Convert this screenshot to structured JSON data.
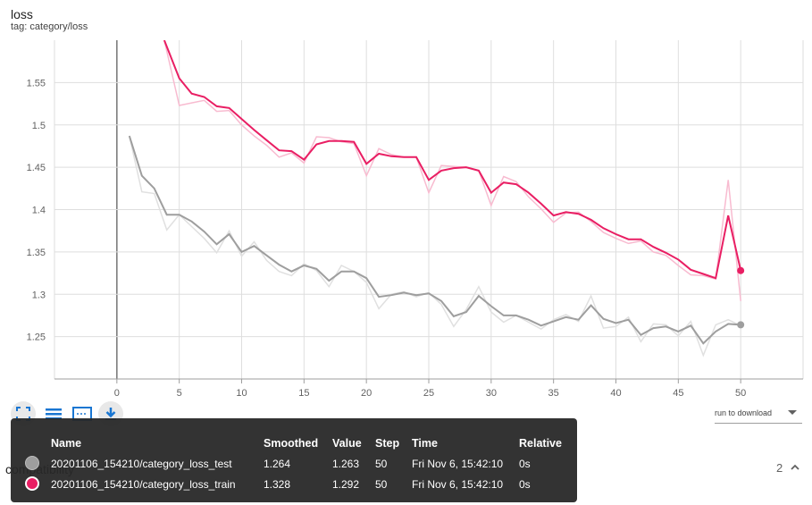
{
  "header": {
    "title": "loss",
    "tag": "tag: category/loss"
  },
  "colors": {
    "train": "#e91e63",
    "test": "#9e9e9e",
    "train_raw": "#f8bbd0",
    "test_raw": "#e0e0e0"
  },
  "toolbar": {
    "buttons": [
      {
        "name": "fit-domain-icon"
      },
      {
        "name": "data-selection-icon"
      },
      {
        "name": "toggle-log-icon"
      },
      {
        "name": "download-icon"
      }
    ]
  },
  "run_download": {
    "label": "run to download"
  },
  "section": {
    "label": "compatibility",
    "count": "2"
  },
  "tooltip": {
    "headers": [
      "Name",
      "Smoothed",
      "Value",
      "Step",
      "Time",
      "Relative"
    ],
    "rows": [
      {
        "name": "20201106_154210/category_loss_test",
        "smoothed": "1.264",
        "value": "1.263",
        "step": "50",
        "time": "Fri Nov 6, 15:42:10",
        "relative": "0s"
      },
      {
        "name": "20201106_154210/category_loss_train",
        "smoothed": "1.328",
        "value": "1.292",
        "step": "50",
        "time": "Fri Nov 6, 15:42:10",
        "relative": "0s"
      }
    ]
  },
  "chart_data": {
    "type": "line",
    "title": "loss",
    "xlabel": "",
    "ylabel": "",
    "xlim": [
      -5,
      55
    ],
    "ylim": [
      1.2,
      1.6
    ],
    "xticks": [
      0,
      5,
      10,
      15,
      20,
      25,
      30,
      35,
      40,
      45,
      50
    ],
    "yticks": [
      1.25,
      1.3,
      1.35,
      1.4,
      1.45,
      1.5,
      1.55
    ],
    "ytick_labels": [
      "1.25",
      "1.3",
      "1.35",
      "1.4",
      "1.45",
      "1.5",
      "1.55"
    ],
    "grid": true,
    "series": [
      {
        "name": "20201106_154210/category_loss_train",
        "x": [
          3.8,
          5,
          6,
          7,
          8,
          9,
          10,
          11,
          12,
          13,
          14,
          15,
          16,
          17,
          18,
          19,
          20,
          21,
          22,
          23,
          24,
          25,
          26,
          27,
          28,
          29,
          30,
          31,
          32,
          33,
          34,
          35,
          36,
          37,
          38,
          39,
          40,
          41,
          42,
          43,
          44,
          45,
          46,
          47,
          48,
          49,
          50
        ],
        "smoothed": [
          1.6,
          1.555,
          1.537,
          1.533,
          1.522,
          1.52,
          1.507,
          1.494,
          1.482,
          1.47,
          1.469,
          1.459,
          1.477,
          1.481,
          1.481,
          1.48,
          1.454,
          1.466,
          1.463,
          1.462,
          1.462,
          1.435,
          1.446,
          1.449,
          1.45,
          1.446,
          1.42,
          1.432,
          1.43,
          1.42,
          1.407,
          1.393,
          1.397,
          1.395,
          1.388,
          1.378,
          1.371,
          1.365,
          1.365,
          1.356,
          1.349,
          1.341,
          1.329,
          1.324,
          1.319,
          1.393,
          1.328
        ],
        "raw": [
          1.6,
          1.523,
          1.526,
          1.529,
          1.516,
          1.517,
          1.5,
          1.487,
          1.476,
          1.462,
          1.467,
          1.455,
          1.486,
          1.485,
          1.48,
          1.478,
          1.44,
          1.472,
          1.465,
          1.462,
          1.462,
          1.42,
          1.452,
          1.451,
          1.45,
          1.446,
          1.405,
          1.439,
          1.433,
          1.415,
          1.401,
          1.385,
          1.396,
          1.397,
          1.386,
          1.373,
          1.366,
          1.36,
          1.363,
          1.35,
          1.346,
          1.334,
          1.323,
          1.322,
          1.318,
          1.435,
          1.292
        ]
      },
      {
        "name": "20201106_154210/category_loss_test",
        "x": [
          1,
          2,
          3,
          4,
          5,
          6,
          7,
          8,
          9,
          10,
          11,
          12,
          13,
          14,
          15,
          16,
          17,
          18,
          19,
          20,
          21,
          22,
          23,
          24,
          25,
          26,
          27,
          28,
          29,
          30,
          31,
          32,
          33,
          34,
          35,
          36,
          37,
          38,
          39,
          40,
          41,
          42,
          43,
          44,
          45,
          46,
          47,
          48,
          49,
          50
        ],
        "smoothed": [
          1.487,
          1.44,
          1.425,
          1.394,
          1.394,
          1.386,
          1.374,
          1.359,
          1.371,
          1.35,
          1.357,
          1.346,
          1.335,
          1.327,
          1.334,
          1.33,
          1.316,
          1.327,
          1.327,
          1.319,
          1.297,
          1.299,
          1.302,
          1.299,
          1.301,
          1.292,
          1.274,
          1.279,
          1.298,
          1.286,
          1.275,
          1.275,
          1.27,
          1.263,
          1.268,
          1.273,
          1.27,
          1.287,
          1.271,
          1.266,
          1.27,
          1.252,
          1.26,
          1.262,
          1.256,
          1.263,
          1.242,
          1.256,
          1.265,
          1.264
        ],
        "raw": [
          1.487,
          1.421,
          1.419,
          1.376,
          1.394,
          1.38,
          1.366,
          1.349,
          1.375,
          1.345,
          1.362,
          1.34,
          1.327,
          1.322,
          1.336,
          1.328,
          1.309,
          1.334,
          1.327,
          1.314,
          1.283,
          1.3,
          1.303,
          1.297,
          1.302,
          1.288,
          1.262,
          1.282,
          1.309,
          1.279,
          1.267,
          1.275,
          1.267,
          1.259,
          1.27,
          1.276,
          1.268,
          1.298,
          1.26,
          1.262,
          1.273,
          1.244,
          1.265,
          1.264,
          1.251,
          1.268,
          1.228,
          1.264,
          1.27,
          1.263
        ]
      }
    ]
  }
}
